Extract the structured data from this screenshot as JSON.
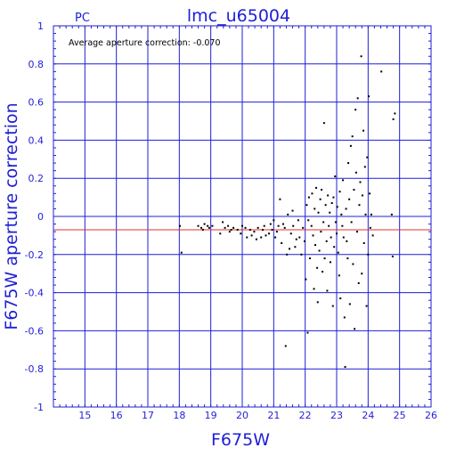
{
  "chart_data": {
    "type": "scatter",
    "title": "lmc_u65004",
    "subtitle": "PC",
    "xlabel": "F675W",
    "ylabel": "F675W aperture correction",
    "annotation": "Average aperture correction: -0.070",
    "xlim": [
      14,
      26
    ],
    "ylim": [
      -1,
      1
    ],
    "xticks": [
      "15",
      "16",
      "17",
      "18",
      "19",
      "20",
      "21",
      "22",
      "23",
      "24",
      "25",
      "26"
    ],
    "yticks": [
      "-1",
      "-0.8",
      "-0.6",
      "-0.4",
      "-0.2",
      "0",
      "0.2",
      "0.4",
      "0.6",
      "0.8",
      "1"
    ],
    "grid": true,
    "reference_line": {
      "y": -0.07,
      "color": "#e03030"
    },
    "colors": {
      "axis": "#1f1fd6",
      "points": "#000000",
      "reference": "#e03030"
    },
    "points": [
      [
        18.02,
        -0.05
      ],
      [
        18.07,
        -0.19
      ],
      [
        18.6,
        -0.05
      ],
      [
        18.7,
        -0.06
      ],
      [
        18.75,
        -0.07
      ],
      [
        18.8,
        -0.04
      ],
      [
        18.9,
        -0.05
      ],
      [
        18.95,
        -0.06
      ],
      [
        19.05,
        -0.05
      ],
      [
        19.3,
        -0.09
      ],
      [
        19.38,
        -0.03
      ],
      [
        19.45,
        -0.06
      ],
      [
        19.55,
        -0.05
      ],
      [
        19.6,
        -0.08
      ],
      [
        19.65,
        -0.07
      ],
      [
        19.72,
        -0.06
      ],
      [
        19.85,
        -0.07
      ],
      [
        19.95,
        -0.09
      ],
      [
        20.0,
        -0.05
      ],
      [
        20.1,
        -0.06
      ],
      [
        20.15,
        -0.11
      ],
      [
        20.25,
        -0.07
      ],
      [
        20.3,
        -0.1
      ],
      [
        20.38,
        -0.08
      ],
      [
        20.45,
        -0.12
      ],
      [
        20.5,
        -0.06
      ],
      [
        20.6,
        -0.11
      ],
      [
        20.65,
        -0.07
      ],
      [
        20.7,
        -0.05
      ],
      [
        20.75,
        -0.1
      ],
      [
        20.85,
        -0.09
      ],
      [
        20.9,
        -0.04
      ],
      [
        20.95,
        -0.07
      ],
      [
        21.0,
        -0.02
      ],
      [
        21.05,
        -0.11
      ],
      [
        21.1,
        -0.08
      ],
      [
        21.15,
        -0.05
      ],
      [
        21.2,
        0.09
      ],
      [
        21.25,
        -0.14
      ],
      [
        21.3,
        -0.04
      ],
      [
        21.35,
        -0.06
      ],
      [
        21.38,
        -0.68
      ],
      [
        21.42,
        -0.2
      ],
      [
        21.45,
        0.01
      ],
      [
        21.5,
        -0.17
      ],
      [
        21.55,
        -0.09
      ],
      [
        21.6,
        0.03
      ],
      [
        21.62,
        -0.05
      ],
      [
        21.68,
        -0.16
      ],
      [
        21.72,
        -0.12
      ],
      [
        21.78,
        -0.02
      ],
      [
        21.82,
        -0.11
      ],
      [
        21.88,
        -0.2
      ],
      [
        21.93,
        -0.06
      ],
      [
        21.98,
        -0.13
      ],
      [
        22.02,
        -0.33
      ],
      [
        22.05,
        0.06
      ],
      [
        22.08,
        -0.61
      ],
      [
        22.1,
        -0.02
      ],
      [
        22.12,
        0.1
      ],
      [
        22.15,
        -0.22
      ],
      [
        22.2,
        -0.05
      ],
      [
        22.22,
        0.12
      ],
      [
        22.25,
        -0.1
      ],
      [
        22.28,
        -0.38
      ],
      [
        22.3,
        0.04
      ],
      [
        22.32,
        -0.15
      ],
      [
        22.35,
        0.15
      ],
      [
        22.38,
        -0.27
      ],
      [
        22.4,
        -0.45
      ],
      [
        22.42,
        0.02
      ],
      [
        22.45,
        -0.18
      ],
      [
        22.48,
        0.09
      ],
      [
        22.5,
        -0.08
      ],
      [
        22.52,
        0.14
      ],
      [
        22.55,
        -0.29
      ],
      [
        22.58,
        -0.03
      ],
      [
        22.6,
        0.49
      ],
      [
        22.62,
        -0.22
      ],
      [
        22.65,
        0.06
      ],
      [
        22.68,
        -0.13
      ],
      [
        22.7,
        -0.39
      ],
      [
        22.72,
        0.11
      ],
      [
        22.75,
        -0.05
      ],
      [
        22.78,
        0.02
      ],
      [
        22.8,
        -0.24
      ],
      [
        22.82,
        -0.11
      ],
      [
        22.85,
        0.07
      ],
      [
        22.88,
        -0.47
      ],
      [
        22.9,
        0.1
      ],
      [
        22.92,
        -0.16
      ],
      [
        22.95,
        0.21
      ],
      [
        22.97,
        -0.03
      ],
      [
        23.0,
        -0.09
      ],
      [
        23.02,
        0.05
      ],
      [
        23.05,
        -0.19
      ],
      [
        23.08,
        -0.31
      ],
      [
        23.1,
        0.13
      ],
      [
        23.12,
        -0.43
      ],
      [
        23.15,
        0.01
      ],
      [
        23.18,
        -0.05
      ],
      [
        23.2,
        0.19
      ],
      [
        23.22,
        -0.11
      ],
      [
        23.25,
        -0.53
      ],
      [
        23.27,
        -0.79
      ],
      [
        23.3,
        0.04
      ],
      [
        23.32,
        -0.13
      ],
      [
        23.35,
        -0.22
      ],
      [
        23.37,
        0.28
      ],
      [
        23.4,
        0.09
      ],
      [
        23.42,
        -0.46
      ],
      [
        23.45,
        0.37
      ],
      [
        23.47,
        -0.03
      ],
      [
        23.5,
        0.42
      ],
      [
        23.52,
        -0.25
      ],
      [
        23.55,
        0.14
      ],
      [
        23.57,
        -0.59
      ],
      [
        23.6,
        0.56
      ],
      [
        23.62,
        0.23
      ],
      [
        23.65,
        -0.08
      ],
      [
        23.67,
        0.62
      ],
      [
        23.7,
        -0.35
      ],
      [
        23.72,
        0.06
      ],
      [
        23.75,
        0.18
      ],
      [
        23.78,
        0.84
      ],
      [
        23.8,
        -0.3
      ],
      [
        23.82,
        0.11
      ],
      [
        23.85,
        0.45
      ],
      [
        23.87,
        -0.14
      ],
      [
        23.9,
        0.26
      ],
      [
        23.92,
        0.01
      ],
      [
        23.95,
        -0.47
      ],
      [
        23.97,
        0.31
      ],
      [
        24.0,
        -0.2
      ],
      [
        24.02,
        0.63
      ],
      [
        24.05,
        0.12
      ],
      [
        24.07,
        -0.06
      ],
      [
        24.1,
        0.01
      ],
      [
        24.15,
        -0.1
      ],
      [
        24.42,
        0.76
      ],
      [
        24.75,
        0.01
      ],
      [
        24.78,
        -0.21
      ],
      [
        24.8,
        0.51
      ],
      [
        24.85,
        0.54
      ]
    ]
  }
}
